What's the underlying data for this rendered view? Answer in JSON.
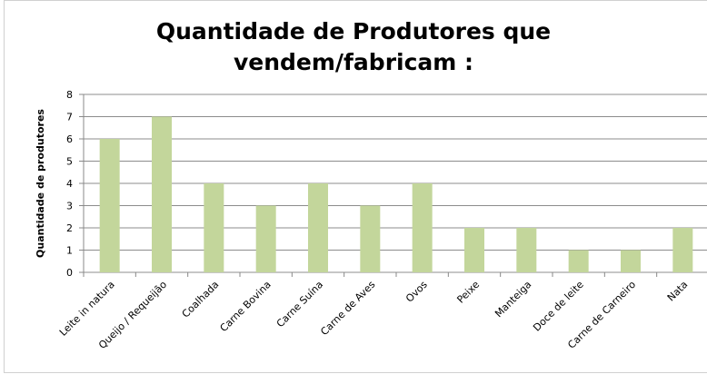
{
  "chart_data": {
    "type": "bar",
    "title": "Quantidade de Produtores que vendem/fabricam :",
    "y_label": "Quantidade de produtores",
    "categories": [
      "Leite in natura",
      "Queijo / Requeijão",
      "Coalhada",
      "Carne Bovina",
      "Carne Suína",
      "Carne de Aves",
      "Ovos",
      "Peixe",
      "Manteiga",
      "Doce de leite",
      "Carne de Carneiro",
      "Nata"
    ],
    "values": [
      6,
      7,
      4,
      3,
      4,
      3,
      4,
      2,
      2,
      1,
      1,
      2
    ],
    "color": "#c3d69b",
    "ylim": [
      0,
      8
    ],
    "yticks": [
      0,
      1,
      2,
      3,
      4,
      5,
      6,
      7,
      8
    ],
    "grid": true
  }
}
